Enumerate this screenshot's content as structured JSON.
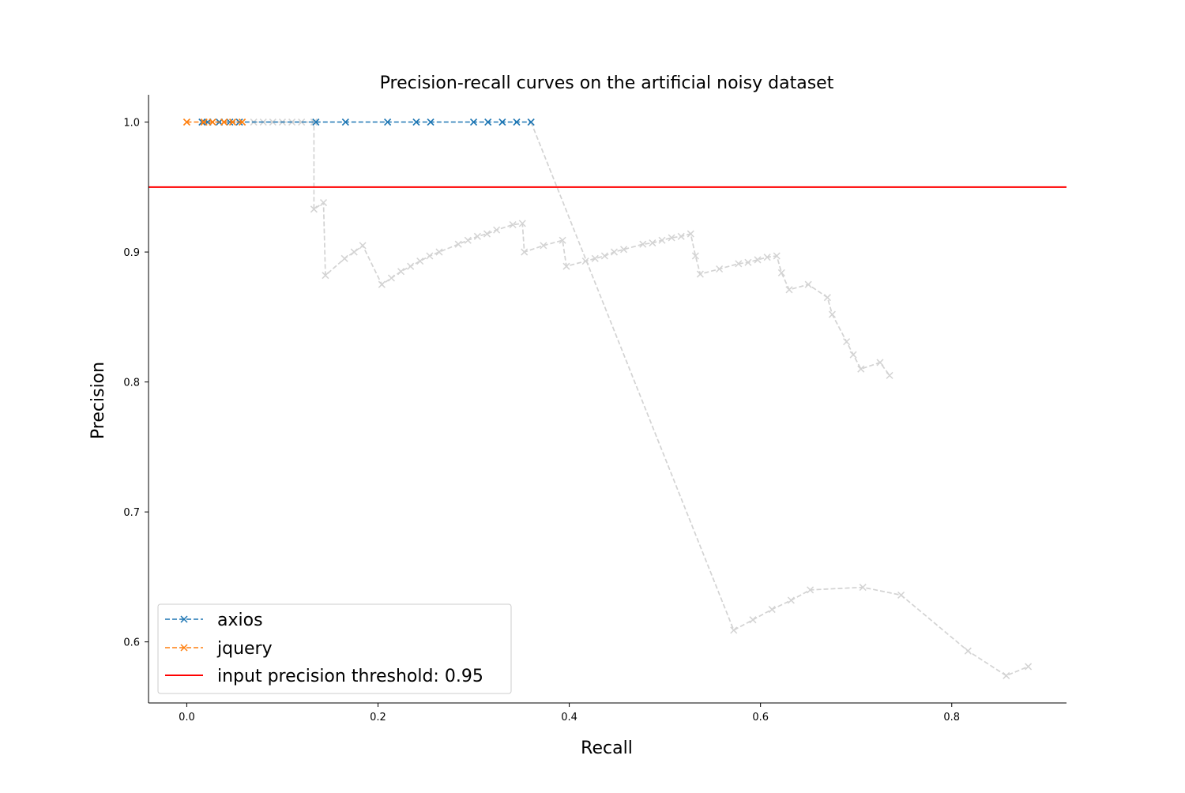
{
  "chart_data": {
    "type": "line",
    "title": "Precision-recall curves on the artificial noisy dataset",
    "xlabel": "Recall",
    "ylabel": "Precision",
    "xlim": [
      -0.04,
      0.92
    ],
    "ylim": [
      0.553,
      1.021
    ],
    "xticks": [
      0.0,
      0.2,
      0.4,
      0.6,
      0.8
    ],
    "xtick_labels": [
      "0.0",
      "0.2",
      "0.4",
      "0.6",
      "0.8"
    ],
    "yticks": [
      0.6,
      0.7,
      0.8,
      0.9,
      1.0
    ],
    "ytick_labels": [
      "0.6",
      "0.7",
      "0.8",
      "0.9",
      "1.0"
    ],
    "grid": false,
    "legend_position": "lower-left",
    "background_series": [
      {
        "color": "#d3d3d3",
        "points": [
          [
            0.07,
            1.0
          ],
          [
            0.08,
            1.0
          ],
          [
            0.09,
            1.0
          ],
          [
            0.1,
            1.0
          ],
          [
            0.11,
            1.0
          ],
          [
            0.12,
            1.0
          ],
          [
            0.133,
            1.0
          ],
          [
            0.133,
            0.933
          ],
          [
            0.143,
            0.938
          ],
          [
            0.145,
            0.882
          ],
          [
            0.165,
            0.895
          ],
          [
            0.175,
            0.9
          ],
          [
            0.184,
            0.905
          ],
          [
            0.204,
            0.875
          ],
          [
            0.214,
            0.88
          ],
          [
            0.224,
            0.885
          ],
          [
            0.234,
            0.889
          ],
          [
            0.244,
            0.893
          ],
          [
            0.254,
            0.897
          ],
          [
            0.264,
            0.9
          ],
          [
            0.284,
            0.906
          ],
          [
            0.294,
            0.909
          ],
          [
            0.304,
            0.912
          ],
          [
            0.314,
            0.914
          ],
          [
            0.324,
            0.917
          ],
          [
            0.341,
            0.921
          ],
          [
            0.351,
            0.922
          ],
          [
            0.353,
            0.9
          ],
          [
            0.373,
            0.905
          ],
          [
            0.393,
            0.909
          ],
          [
            0.397,
            0.889
          ],
          [
            0.417,
            0.893
          ],
          [
            0.427,
            0.895
          ],
          [
            0.437,
            0.897
          ],
          [
            0.447,
            0.9
          ],
          [
            0.457,
            0.902
          ],
          [
            0.477,
            0.906
          ],
          [
            0.487,
            0.907
          ],
          [
            0.497,
            0.909
          ],
          [
            0.507,
            0.911
          ],
          [
            0.517,
            0.912
          ],
          [
            0.527,
            0.914
          ],
          [
            0.532,
            0.897
          ],
          [
            0.537,
            0.883
          ],
          [
            0.557,
            0.887
          ],
          [
            0.577,
            0.891
          ],
          [
            0.587,
            0.892
          ],
          [
            0.597,
            0.894
          ],
          [
            0.607,
            0.896
          ],
          [
            0.617,
            0.897
          ],
          [
            0.622,
            0.884
          ],
          [
            0.63,
            0.871
          ],
          [
            0.65,
            0.875
          ],
          [
            0.67,
            0.865
          ],
          [
            0.675,
            0.852
          ],
          [
            0.69,
            0.831
          ],
          [
            0.697,
            0.821
          ],
          [
            0.705,
            0.81
          ],
          [
            0.725,
            0.815
          ],
          [
            0.735,
            0.805
          ]
        ]
      },
      {
        "color": "#d3d3d3",
        "points": [
          [
            0.36,
            1.0
          ],
          [
            0.572,
            0.609
          ],
          [
            0.592,
            0.617
          ],
          [
            0.612,
            0.625
          ],
          [
            0.632,
            0.632
          ],
          [
            0.652,
            0.64
          ],
          [
            0.707,
            0.642
          ],
          [
            0.747,
            0.636
          ],
          [
            0.817,
            0.593
          ],
          [
            0.857,
            0.574
          ],
          [
            0.88,
            0.581
          ]
        ]
      }
    ],
    "series": [
      {
        "name": "axios",
        "color": "#1f77b4",
        "x": [
          0.016,
          0.022,
          0.034,
          0.045,
          0.055,
          0.135,
          0.166,
          0.21,
          0.24,
          0.255,
          0.3,
          0.315,
          0.33,
          0.345,
          0.36
        ],
        "y": [
          1.0,
          1.0,
          1.0,
          1.0,
          1.0,
          1.0,
          1.0,
          1.0,
          1.0,
          1.0,
          1.0,
          1.0,
          1.0,
          1.0,
          1.0
        ]
      },
      {
        "name": "jquery",
        "color": "#ff7f0e",
        "x": [
          0.0,
          0.018,
          0.027,
          0.039,
          0.048,
          0.058
        ],
        "y": [
          1.0,
          1.0,
          1.0,
          1.0,
          1.0,
          1.0
        ]
      }
    ],
    "threshold": {
      "label": "input precision threshold: 0.95",
      "value": 0.95,
      "color": "#ff0000"
    }
  }
}
